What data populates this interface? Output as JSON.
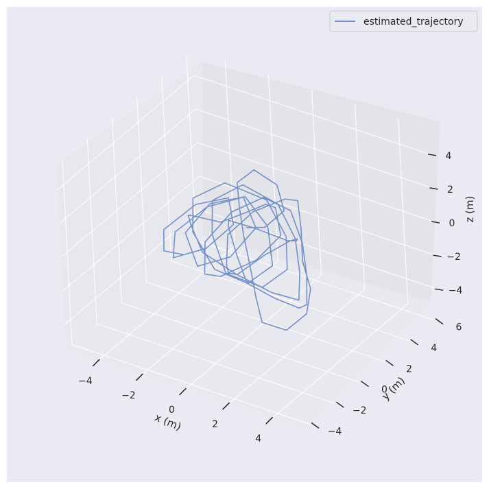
{
  "chart_data": {
    "type": "line",
    "projection": "3d",
    "xlabel": "x (m)",
    "ylabel": "y (m)",
    "zlabel": "z (m)",
    "xlim": [
      -5.5,
      5.5
    ],
    "ylim": [
      -4.5,
      6.5
    ],
    "zlim": [
      -5.5,
      5.5
    ],
    "xticks": [
      -4,
      -2,
      0,
      2,
      4
    ],
    "yticks": [
      -4,
      -2,
      0,
      2,
      4,
      6
    ],
    "zticks": [
      -4,
      -2,
      0,
      2,
      4
    ],
    "xtick_labels": [
      "−4",
      "−2",
      "0",
      "2",
      "4"
    ],
    "ytick_labels": [
      "−4",
      "−2",
      "0",
      "2",
      "4",
      "6"
    ],
    "ztick_labels": [
      "−4",
      "−2",
      "0",
      "2",
      "4"
    ],
    "grid": true,
    "legend_position": "top-right",
    "series": [
      {
        "name": "estimated_trajectory",
        "color": "#7391c4",
        "x": [
          -1.5,
          -2.9,
          -3.4,
          -2.5,
          -1.2,
          -0.6,
          -1.4,
          -2.6,
          -3.0,
          -2.1,
          -0.8,
          0.2,
          -0.4,
          -1.6,
          -2.7,
          -2.2,
          -0.9,
          0.4,
          1.2,
          0.6,
          -0.5,
          -1.8,
          -2.5,
          -1.7,
          -0.2,
          1.0,
          1.7,
          1.1,
          -0.1,
          -1.2,
          -1.9,
          -1.1,
          0.2,
          1.3,
          2.1,
          2.6,
          1.9,
          0.7,
          -0.6,
          -1.5,
          -2.4,
          -2.9,
          -2.3,
          -1.3,
          -0.2,
          0.8,
          1.6,
          1.0,
          -0.3,
          -1.4,
          -2.1,
          -1.5,
          -0.4,
          0.6,
          1.5,
          2.3,
          2.9,
          3.2,
          2.6,
          1.6,
          0.7,
          -0.3,
          -1.0,
          -0.5,
          0.5,
          1.3,
          2.0,
          2.4,
          1.7,
          0.8,
          -0.1,
          -0.9,
          -1.5,
          -0.8,
          0.3,
          1.2,
          1.9,
          2.5,
          3.3,
          3.6,
          3.1,
          2.4,
          1.8,
          1.0,
          0.1,
          -0.7,
          -1.3,
          -0.9,
          -0.1,
          0.6,
          0.2,
          -0.2
        ],
        "y": [
          -1.5,
          -0.8,
          0.1,
          1.2,
          1.6,
          0.9,
          0.0,
          -0.6,
          0.3,
          1.4,
          2.1,
          1.3,
          0.2,
          -0.4,
          0.6,
          1.8,
          2.4,
          1.9,
          0.8,
          -0.2,
          -0.9,
          -0.3,
          1.0,
          2.2,
          2.9,
          2.3,
          1.1,
          0.1,
          -0.7,
          0.2,
          1.5,
          2.6,
          3.1,
          2.5,
          1.4,
          0.4,
          -0.5,
          -1.2,
          -1.6,
          -0.9,
          0.4,
          1.6,
          2.7,
          3.3,
          2.8,
          1.9,
          0.9,
          -0.1,
          -0.8,
          -0.2,
          1.1,
          2.3,
          3.0,
          3.4,
          2.7,
          1.6,
          0.5,
          -0.6,
          -1.4,
          -1.9,
          -1.1,
          0.0,
          1.2,
          2.4,
          3.2,
          2.6,
          1.5,
          0.3,
          -0.6,
          -1.3,
          -0.5,
          0.7,
          1.9,
          2.8,
          3.5,
          3.0,
          2.0,
          1.0,
          0.2,
          -0.7,
          -1.5,
          -2.2,
          -1.6,
          -0.6,
          0.5,
          1.6,
          2.5,
          3.2,
          3.6,
          2.9,
          2.0,
          1.2
        ],
        "z": [
          0.0,
          -0.8,
          -0.3,
          0.9,
          1.6,
          0.7,
          -0.5,
          -1.2,
          -0.4,
          0.8,
          1.5,
          0.6,
          -0.7,
          -1.4,
          -0.5,
          0.7,
          1.3,
          0.4,
          -0.9,
          -1.6,
          -0.8,
          0.5,
          1.4,
          1.9,
          1.1,
          -0.2,
          -1.1,
          -1.8,
          -1.0,
          0.3,
          1.2,
          1.8,
          0.9,
          -0.3,
          -1.3,
          -2.1,
          -1.4,
          -0.4,
          0.6,
          1.4,
          0.8,
          -0.2,
          -1.0,
          -0.3,
          0.9,
          1.7,
          1.0,
          -0.1,
          -1.2,
          -1.9,
          -1.1,
          0.2,
          1.1,
          0.5,
          -0.6,
          -1.5,
          -2.3,
          -1.7,
          -0.9,
          -0.1,
          0.7,
          1.3,
          0.6,
          -0.4,
          -1.2,
          -0.5,
          0.6,
          1.4,
          0.8,
          -0.3,
          -1.1,
          -1.7,
          -0.9,
          0.2,
          1.0,
          1.6,
          0.9,
          -0.2,
          -1.0,
          -1.8,
          -2.5,
          -1.9,
          -1.0,
          -0.2,
          0.6,
          1.2,
          1.9,
          2.4,
          1.6,
          0.8,
          0.2,
          0.5
        ]
      }
    ]
  }
}
